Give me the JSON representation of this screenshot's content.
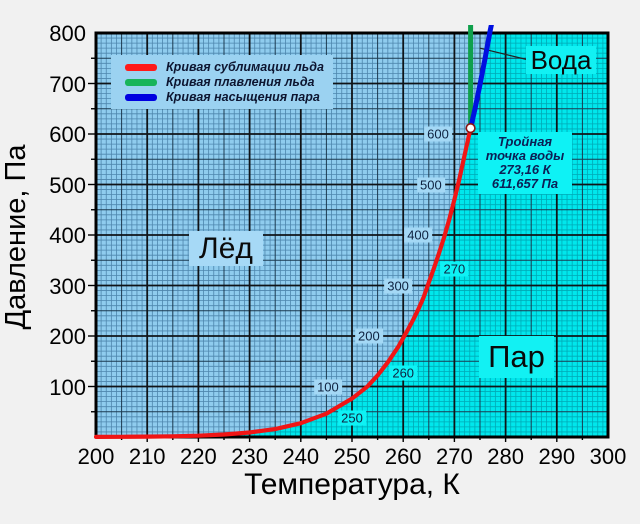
{
  "chart_data": {
    "type": "line",
    "xlabel": "Температура, К",
    "ylabel": "Давление, Па",
    "xlim": [
      200,
      300
    ],
    "ylim": [
      0,
      800
    ],
    "xticks": [
      200,
      210,
      220,
      230,
      240,
      250,
      260,
      270,
      280,
      290,
      300
    ],
    "yticks": [
      100,
      200,
      300,
      400,
      500,
      600,
      700,
      800
    ],
    "grid": {
      "minor_x_step": 1,
      "minor_y_step": 10,
      "medium_x_step": 5,
      "medium_y_step": 50,
      "major_x_step": 10,
      "major_y_step": 100
    },
    "colors": {
      "vapor_bg": "#00e7ec",
      "ice_bg": "#8fccee",
      "vapor_minor_grid": "#00aab6",
      "ice_minor_grid": "#4e86ad",
      "medium_grid": "#1c3a50",
      "major_grid": "#101418",
      "frame": "#000000",
      "triple_marker_stroke": "#8c1212",
      "triple_marker_fill": "#ffffff",
      "leader_line": "#222222"
    },
    "series": [
      {
        "name": "Кривая сублимации льда",
        "color": "#f01515",
        "width": 4.2,
        "points": [
          [
            200,
            0.16
          ],
          [
            205,
            0.38
          ],
          [
            210,
            0.7
          ],
          [
            215,
            1.4
          ],
          [
            220,
            2.65
          ],
          [
            225,
            4.9
          ],
          [
            230,
            8.95
          ],
          [
            235,
            15.7
          ],
          [
            240,
            27.3
          ],
          [
            245,
            46.2
          ],
          [
            250,
            76
          ],
          [
            253,
            100
          ],
          [
            255,
            122
          ],
          [
            257,
            148
          ],
          [
            259,
            178
          ],
          [
            260,
            196
          ],
          [
            261,
            214
          ],
          [
            262,
            233
          ],
          [
            263,
            254
          ],
          [
            264,
            277
          ],
          [
            265,
            306
          ],
          [
            266,
            334
          ],
          [
            267,
            364
          ],
          [
            268,
            396
          ],
          [
            269,
            431
          ],
          [
            270,
            470
          ],
          [
            271,
            512
          ],
          [
            272,
            558
          ],
          [
            273.16,
            611.657
          ]
        ]
      },
      {
        "name": "Кривая плавления льда",
        "color": "#0fa04c",
        "width": 5,
        "points": [
          [
            273.16,
            611.657
          ],
          [
            273.16,
            820
          ]
        ]
      },
      {
        "name": "Кривая насыщения пара",
        "color": "#0010e0",
        "width": 5,
        "points": [
          [
            273.16,
            611.657
          ],
          [
            274,
            649
          ],
          [
            275,
            698
          ],
          [
            276,
            750
          ],
          [
            277,
            805
          ],
          [
            277.3,
            820
          ]
        ]
      }
    ],
    "legend": {
      "position": "top-left",
      "entries": [
        {
          "label": "Кривая сублимации льда",
          "color": "#ff1a1a"
        },
        {
          "label": "Кривая плавления льда",
          "color": "#18b45a"
        },
        {
          "label": "Кривая насыщения пара",
          "color": "#0000e0"
        }
      ]
    },
    "triple_point": {
      "T": 273.16,
      "P": 611.657
    },
    "annotation": {
      "lines": [
        "Тройная",
        "точка воды",
        "273,16 К",
        "611,657 Па"
      ]
    },
    "region_labels": [
      {
        "text": "Лёд"
      },
      {
        "text": "Пар"
      },
      {
        "text": "Вода"
      }
    ],
    "water_leader_line": {
      "x1": 275.0,
      "y1": 770,
      "x2": 284.3,
      "y2": 747
    },
    "pressure_labels_on_curve": [
      {
        "value": 100,
        "T": 245.3
      },
      {
        "value": 200,
        "T": 253.3
      },
      {
        "value": 300,
        "T": 259.0
      },
      {
        "value": 400,
        "T": 262.9
      },
      {
        "value": 500,
        "T": 265.4
      },
      {
        "value": 600,
        "T": 266.8
      }
    ],
    "temperature_labels_on_curve": [
      {
        "value": 250,
        "P": 38
      },
      {
        "value": 260,
        "P": 127
      },
      {
        "value": 270,
        "P": 333
      }
    ]
  }
}
